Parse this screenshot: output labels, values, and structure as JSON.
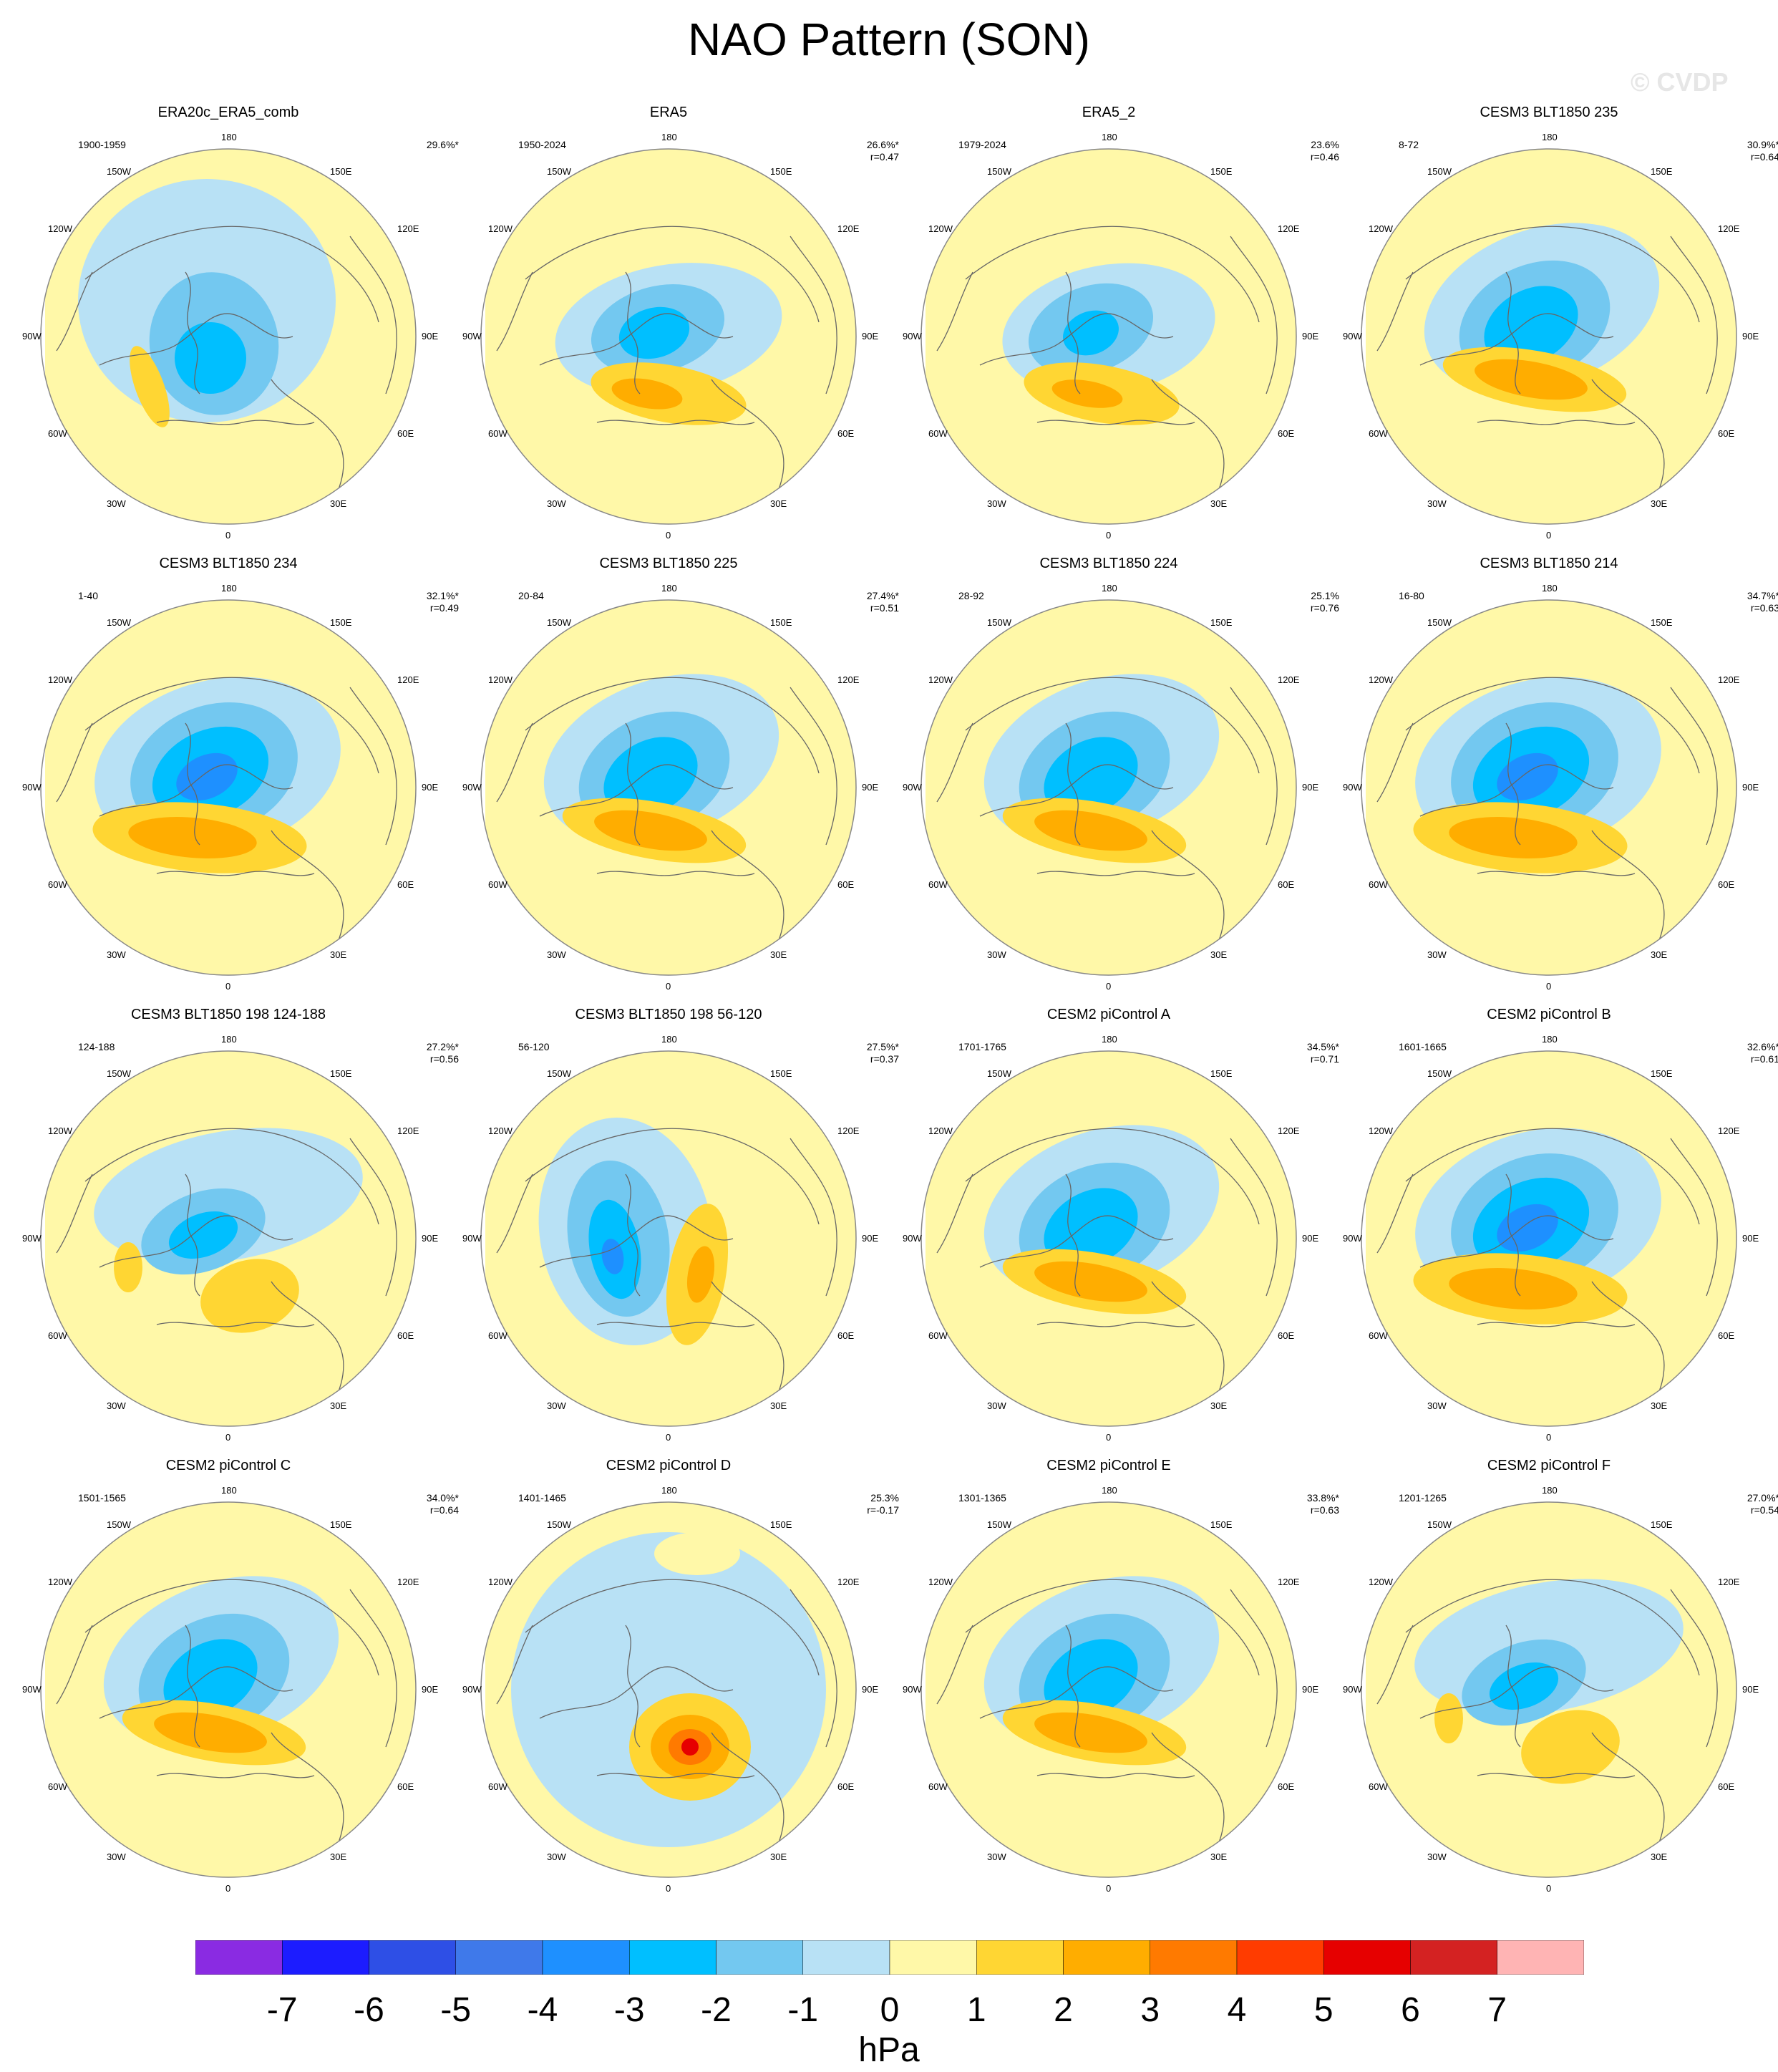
{
  "title": "NAO Pattern (SON)",
  "watermark": "© CVDP",
  "colorbar": {
    "units": "hPa",
    "labels": [
      "-7",
      "-6",
      "-5",
      "-4",
      "-3",
      "-2",
      "-1",
      "0",
      "1",
      "2",
      "3",
      "4",
      "5",
      "6",
      "7"
    ],
    "colors": [
      "#8a2be2",
      "#1c1cff",
      "#2e4fe6",
      "#3f79ea",
      "#1e90ff",
      "#00bfff",
      "#73c8f0",
      "#b8e1f5",
      "#fff8a8",
      "#ffd633",
      "#ffad00",
      "#ff7a00",
      "#ff3c00",
      "#e60000",
      "#d42222",
      "#ffb4b4"
    ]
  },
  "lon_labels": {
    "top": "180",
    "tl": "150W",
    "tr": "150E",
    "l1": "120W",
    "r1": "120E",
    "l2": "90W",
    "r2": "90E",
    "l3": "60W",
    "r3": "60E",
    "bl": "30W",
    "br": "30E",
    "bottom": "0"
  },
  "panels": [
    {
      "title": "ERA20c_ERA5_comb",
      "years": "1900-1959",
      "pct": "29.6%*",
      "r": "",
      "pattern": "era20c"
    },
    {
      "title": "ERA5",
      "years": "1950-2024",
      "pct": "26.6%*",
      "r": "r=0.47",
      "pattern": "era5"
    },
    {
      "title": "ERA5_2",
      "years": "1979-2024",
      "pct": "23.6%",
      "r": "r=0.46",
      "pattern": "era5b"
    },
    {
      "title": "CESM3 BLT1850 235",
      "years": "8-72",
      "pct": "30.9%*",
      "r": "r=0.64",
      "pattern": "std"
    },
    {
      "title": "CESM3 BLT1850 234",
      "years": "1-40",
      "pct": "32.1%*",
      "r": "r=0.49",
      "pattern": "strong"
    },
    {
      "title": "CESM3 BLT1850 225",
      "years": "20-84",
      "pct": "27.4%*",
      "r": "r=0.51",
      "pattern": "std"
    },
    {
      "title": "CESM3 BLT1850 224",
      "years": "28-92",
      "pct": "25.1%",
      "r": "r=0.76",
      "pattern": "std"
    },
    {
      "title": "CESM3 BLT1850 214",
      "years": "16-80",
      "pct": "34.7%*",
      "r": "r=0.63",
      "pattern": "strong"
    },
    {
      "title": "CESM3 BLT1850 198 124-188",
      "years": "124-188",
      "pct": "27.2%*",
      "r": "r=0.56",
      "pattern": "weak"
    },
    {
      "title": "CESM3 BLT1850 198 56-120",
      "years": "56-120",
      "pct": "27.5%*",
      "r": "r=0.37",
      "pattern": "dipole"
    },
    {
      "title": "CESM2 piControl A",
      "years": "1701-1765",
      "pct": "34.5%*",
      "r": "r=0.71",
      "pattern": "std"
    },
    {
      "title": "CESM2 piControl B",
      "years": "1601-1665",
      "pct": "32.6%*",
      "r": "r=0.61",
      "pattern": "strong"
    },
    {
      "title": "CESM2 piControl C",
      "years": "1501-1565",
      "pct": "34.0%*",
      "r": "r=0.64",
      "pattern": "std"
    },
    {
      "title": "CESM2 piControl D",
      "years": "1401-1465",
      "pct": "25.3%",
      "r": "r=-0.17",
      "pattern": "inverse"
    },
    {
      "title": "CESM2 piControl E",
      "years": "1301-1365",
      "pct": "33.8%*",
      "r": "r=0.63",
      "pattern": "std"
    },
    {
      "title": "CESM2 piControl F",
      "years": "1201-1265",
      "pct": "27.0%*",
      "r": "r=0.54",
      "pattern": "weak"
    }
  ]
}
